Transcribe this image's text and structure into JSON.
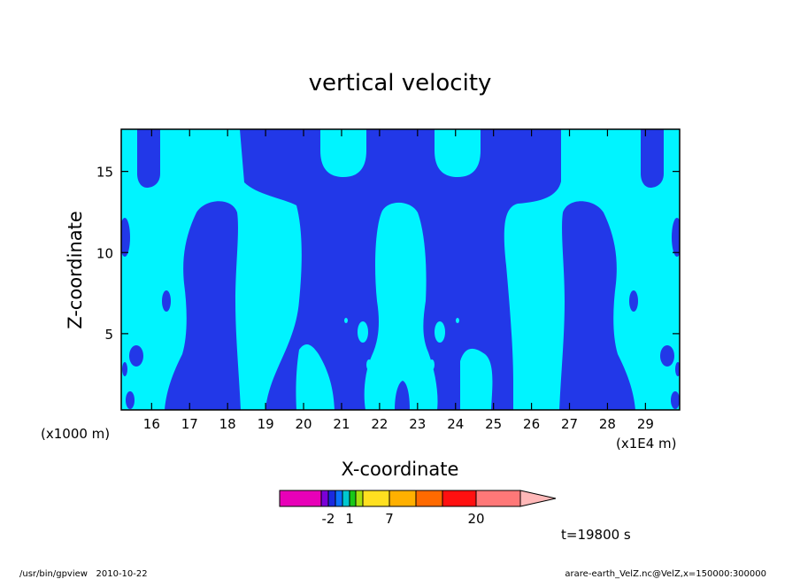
{
  "chart_data": {
    "type": "heatmap",
    "title": "vertical velocity",
    "xlabel": "X-coordinate",
    "ylabel": "Z-coordinate",
    "x_unit_note": "(x1E4 m)",
    "y_unit_note": "(x1000 m)",
    "xlim": [
      15.2,
      29.9
    ],
    "ylim": [
      0.3,
      17.6
    ],
    "x_ticks": [
      "16",
      "17",
      "18",
      "19",
      "20",
      "21",
      "22",
      "23",
      "24",
      "25",
      "26",
      "27",
      "28",
      "29"
    ],
    "y_ticks": [
      "5",
      "10",
      "15"
    ],
    "time_label": "t=19800 s",
    "colorbar": {
      "levels": [
        -2,
        1,
        7,
        20
      ],
      "tick_labels": [
        "-2",
        "1",
        "7",
        "20"
      ],
      "colors": [
        "#e800b8",
        "#7a00d8",
        "#1a2adf",
        "#0a72ff",
        "#00c8d0",
        "#18c818",
        "#a8e010",
        "#ffe020",
        "#ffb000",
        "#ff6a00",
        "#ff1010",
        "#ff7878",
        "#ffb8b8"
      ]
    },
    "field_colors": {
      "negative": "#2238e8",
      "positive": "#00f4ff"
    },
    "regions": [
      {
        "id": "left-upper-band",
        "sign": "negative",
        "x": [
          15.4,
          16.2
        ],
        "z": [
          14.2,
          17.6
        ]
      },
      {
        "id": "left-column",
        "sign": "negative",
        "x": [
          16.5,
          18.2
        ],
        "z": [
          0.3,
          13.5
        ]
      },
      {
        "id": "central-plume",
        "sign": "negative",
        "x": [
          18.5,
          27.2
        ],
        "z": [
          0.3,
          17.6
        ]
      },
      {
        "id": "right-column",
        "sign": "negative",
        "x": [
          26.6,
          28.3
        ],
        "z": [
          0.3,
          13.5
        ]
      },
      {
        "id": "right-upper-band",
        "sign": "negative",
        "x": [
          28.8,
          29.4
        ],
        "z": [
          14.2,
          17.6
        ]
      }
    ]
  },
  "footer": {
    "left": "/usr/bin/gpview   2010-10-22",
    "right": "arare-earth_VelZ.nc@VelZ,x=150000:300000"
  }
}
